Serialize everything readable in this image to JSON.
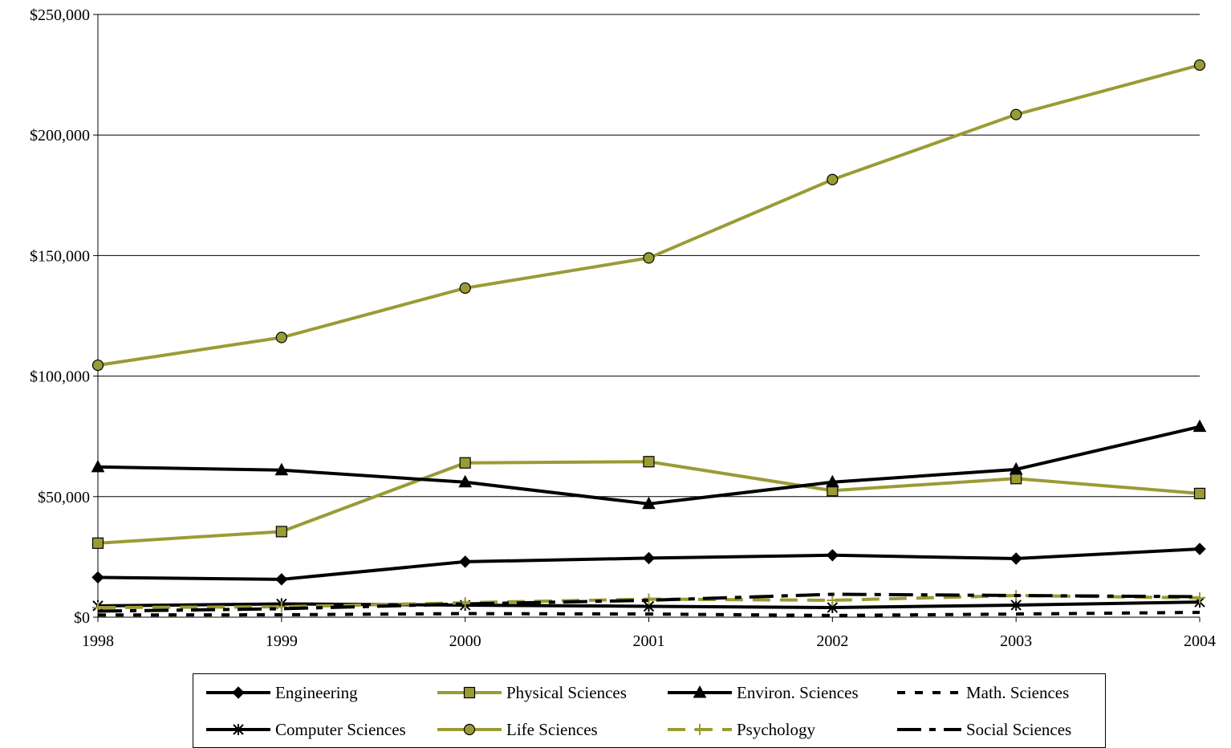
{
  "chart_data": {
    "type": "line",
    "title": "",
    "xlabel": "",
    "ylabel": "",
    "categories": [
      "1998",
      "1999",
      "2000",
      "2001",
      "2002",
      "2003",
      "2004"
    ],
    "ylim": [
      0,
      250000
    ],
    "yticks": [
      0,
      50000,
      100000,
      150000,
      200000,
      250000
    ],
    "ytick_labels": [
      "$0",
      "$50,000",
      "$100,000",
      "$150,000",
      "$200,000",
      "$250,000"
    ],
    "grid": true,
    "legend_position": "bottom",
    "series": [
      {
        "name": "Engineering",
        "color": "#000000",
        "marker": "diamond",
        "line": "solid",
        "values": [
          16500,
          15700,
          23000,
          24500,
          25700,
          24300,
          28300
        ]
      },
      {
        "name": "Physical Sciences",
        "color": "#9b9b35",
        "marker": "square",
        "line": "solid",
        "values": [
          30700,
          35500,
          64000,
          64500,
          52500,
          57500,
          51300
        ]
      },
      {
        "name": "Environ. Sciences",
        "color": "#000000",
        "marker": "triangle",
        "line": "solid",
        "values": [
          62300,
          61000,
          56000,
          47000,
          56000,
          61300,
          79000
        ]
      },
      {
        "name": "Math. Sciences",
        "color": "#000000",
        "marker": "none",
        "line": "dotted",
        "values": [
          900,
          1000,
          1500,
          1300,
          700,
          1300,
          2000
        ]
      },
      {
        "name": "Computer Sciences",
        "color": "#000000",
        "marker": "star",
        "line": "solid",
        "values": [
          4700,
          5500,
          5000,
          4500,
          4000,
          5000,
          6300
        ]
      },
      {
        "name": "Life Sciences",
        "color": "#9b9b35",
        "marker": "circle",
        "line": "solid",
        "values": [
          104500,
          116000,
          136500,
          149000,
          181500,
          208500,
          229000
        ]
      },
      {
        "name": "Psychology",
        "color": "#9b9b35",
        "marker": "plus",
        "line": "dashed",
        "values": [
          4000,
          4300,
          6000,
          7500,
          7000,
          9000,
          8000
        ]
      },
      {
        "name": "Social Sciences",
        "color": "#000000",
        "marker": "none",
        "line": "dashdot",
        "values": [
          2500,
          3500,
          5500,
          7000,
          9500,
          9000,
          8500
        ]
      }
    ]
  }
}
